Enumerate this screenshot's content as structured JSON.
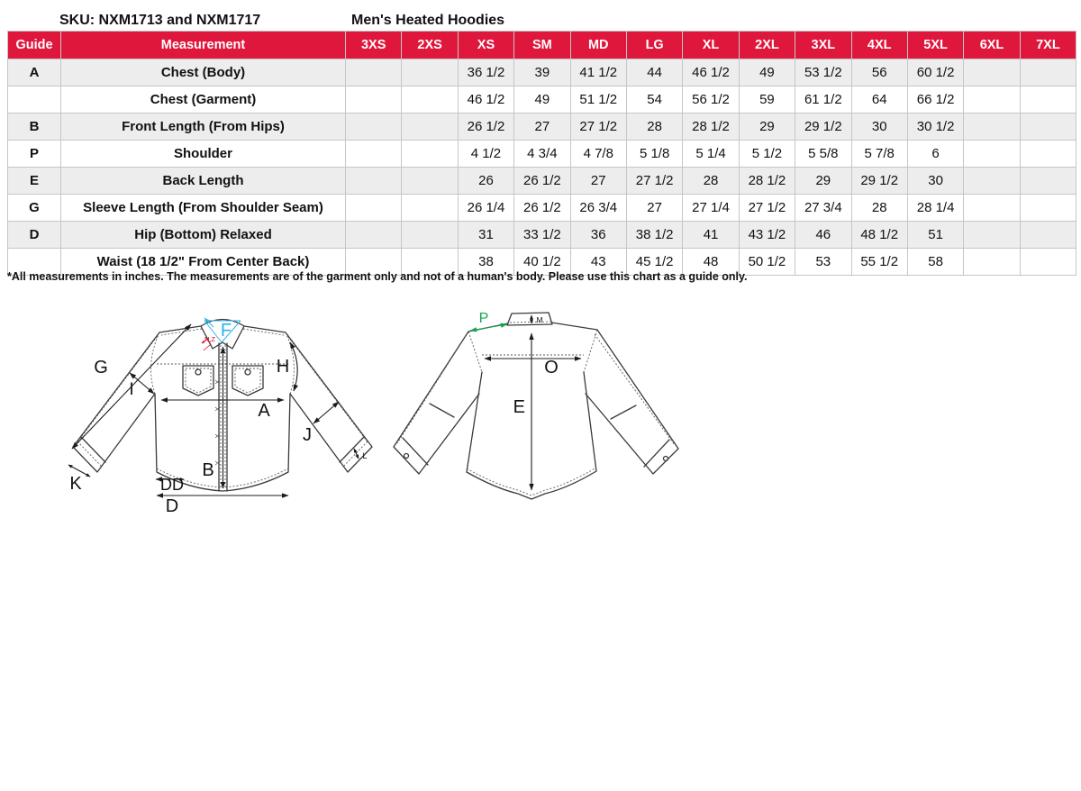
{
  "header": {
    "sku_title": "SKU: NXM1713 and NXM1717",
    "product_title": "Men's Heated Hoodies"
  },
  "footnote": "*All measurements in inches. The measurements are of the garment only and not of a human's body. Please use this chart as a guide only.",
  "colors": {
    "header_bg": "#E0173C",
    "header_text": "#FFFFFF",
    "row_alt": "#EDEDED",
    "row": "#FFFFFF",
    "grid": "#C6C6C6",
    "diagram_line": "#3A3A3A",
    "label_cyan": "#2BB4E8",
    "label_red": "#E3001F",
    "label_green": "#10A74F"
  },
  "chart_data": {
    "type": "table",
    "columns": [
      "Guide",
      "Measurement",
      "3XS",
      "2XS",
      "XS",
      "SM",
      "MD",
      "LG",
      "XL",
      "2XL",
      "3XL",
      "4XL",
      "5XL",
      "6XL",
      "7XL"
    ],
    "rows": [
      [
        "A",
        "Chest (Body)",
        "",
        "",
        "36 1/2",
        "39",
        "41 1/2",
        "44",
        "46 1/2",
        "49",
        "53 1/2",
        "56",
        "60 1/2",
        "",
        ""
      ],
      [
        "",
        "Chest (Garment)",
        "",
        "",
        "46 1/2",
        "49",
        "51 1/2",
        "54",
        "56 1/2",
        "59",
        "61 1/2",
        "64",
        "66 1/2",
        "",
        ""
      ],
      [
        "B",
        "Front Length (From Hips)",
        "",
        "",
        "26 1/2",
        "27",
        "27 1/2",
        "28",
        "28 1/2",
        "29",
        "29 1/2",
        "30",
        "30 1/2",
        "",
        ""
      ],
      [
        "P",
        "Shoulder",
        "",
        "",
        "4 1/2",
        "4 3/4",
        "4 7/8",
        "5 1/8",
        "5 1/4",
        "5 1/2",
        "5 5/8",
        "5 7/8",
        "6",
        "",
        ""
      ],
      [
        "E",
        "Back Length",
        "",
        "",
        "26",
        "26 1/2",
        "27",
        "27 1/2",
        "28",
        "28 1/2",
        "29",
        "29 1/2",
        "30",
        "",
        ""
      ],
      [
        "G",
        "Sleeve Length (From Shoulder Seam)",
        "",
        "",
        "26 1/4",
        "26 1/2",
        "26 3/4",
        "27",
        "27 1/4",
        "27 1/2",
        "27 3/4",
        "28",
        "28 1/4",
        "",
        ""
      ],
      [
        "D",
        "Hip (Bottom) Relaxed",
        "",
        "",
        "31",
        "33 1/2",
        "36",
        "38 1/2",
        "41",
        "43 1/2",
        "46",
        "48 1/2",
        "51",
        "",
        ""
      ],
      [
        "",
        "Waist (18 1/2\" From Center Back)",
        "",
        "",
        "38",
        "40 1/2",
        "43",
        "45 1/2",
        "48",
        "50 1/2",
        "53",
        "55 1/2",
        "58",
        "",
        ""
      ]
    ]
  },
  "diagram": {
    "front": {
      "collar_label": "F",
      "collar_detail_label": "N,Z",
      "sleeve_length_label": "G",
      "armpit_label": "I",
      "armhole_label": "H",
      "chest_label": "A",
      "forearm_label": "J",
      "front_length_label": "B",
      "hem_detail_label": "DD",
      "hem_width_label": "D",
      "cuff_label": "K",
      "cuff_width_label": "L"
    },
    "back": {
      "shoulder_label": "P",
      "collar_height_label": "M",
      "back_width_label": "O",
      "back_length_label": "E"
    }
  }
}
